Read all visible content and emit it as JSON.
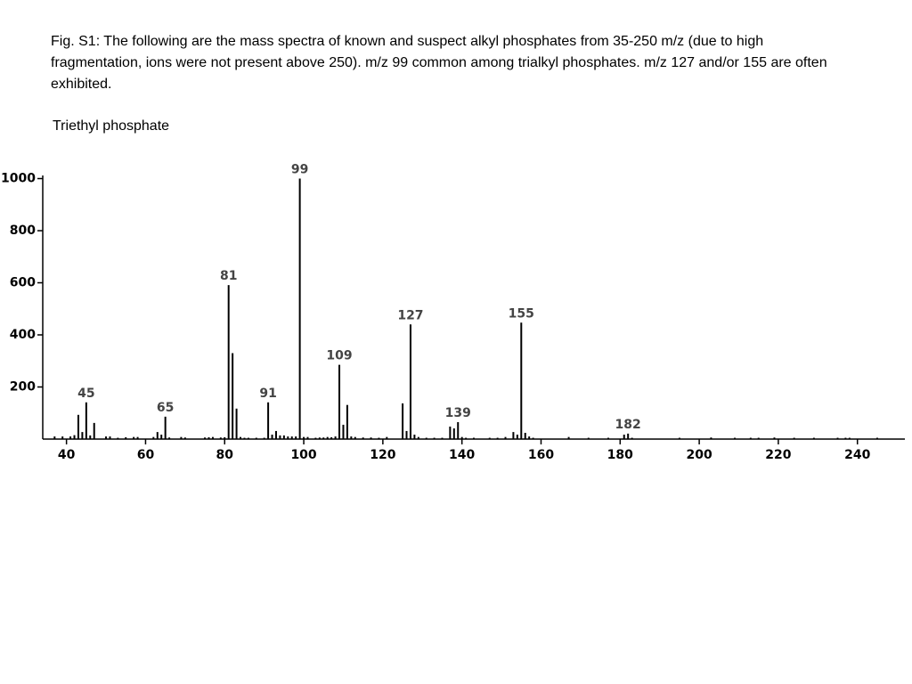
{
  "caption": "Fig. S1: The following are the mass spectra of known and  suspect alkyl phosphates from 35-250 m/z (due to high fragmentation, ions were not present above 250). m/z 99 common among trialkyl phosphates. m/z 127 and/or 155 are often exhibited.",
  "chart_data": {
    "type": "bar",
    "title": "Triethyl phosphate",
    "color": "#000000",
    "x": [
      37,
      39,
      41,
      42,
      43,
      44,
      45,
      46,
      47,
      50,
      51,
      53,
      55,
      57,
      58,
      62,
      63,
      64,
      65,
      66,
      69,
      70,
      75,
      76,
      77,
      79,
      80,
      81,
      82,
      83,
      84,
      85,
      86,
      88,
      90,
      91,
      92,
      93,
      94,
      95,
      96,
      97,
      98,
      99,
      100,
      101,
      103,
      104,
      105,
      106,
      107,
      108,
      109,
      110,
      111,
      112,
      113,
      115,
      117,
      119,
      121,
      125,
      126,
      127,
      128,
      129,
      131,
      133,
      135,
      137,
      138,
      139,
      140,
      141,
      143,
      147,
      149,
      151,
      153,
      154,
      155,
      156,
      157,
      158,
      167,
      172,
      177,
      181,
      182,
      183,
      195,
      203,
      209,
      213,
      215,
      219,
      224,
      229,
      235,
      237,
      238,
      245
    ],
    "values": [
      10,
      10,
      10,
      15,
      93,
      27,
      141,
      14,
      62,
      10,
      10,
      5,
      7,
      8,
      8,
      8,
      27,
      17,
      86,
      6,
      8,
      6,
      6,
      7,
      8,
      6,
      7,
      591,
      330,
      117,
      8,
      5,
      5,
      5,
      5,
      141,
      17,
      31,
      14,
      14,
      10,
      10,
      10,
      1000,
      8,
      8,
      5,
      6,
      6,
      8,
      7,
      10,
      285,
      55,
      131,
      10,
      8,
      6,
      6,
      5,
      8,
      137,
      31,
      440,
      17,
      8,
      5,
      5,
      5,
      48,
      41,
      65,
      8,
      5,
      5,
      5,
      5,
      8,
      27,
      17,
      447,
      24,
      10,
      5,
      8,
      5,
      5,
      17,
      21,
      5,
      5,
      6,
      5,
      5,
      5,
      6,
      5,
      5,
      5,
      5,
      5,
      5
    ],
    "annotations": [
      45,
      65,
      81,
      91,
      99,
      109,
      127,
      139,
      155,
      182
    ],
    "xlim": [
      34,
      252
    ],
    "xticks": [
      40,
      60,
      80,
      100,
      120,
      140,
      160,
      180,
      200,
      220,
      240
    ],
    "ylim": [
      0,
      1012
    ],
    "yticks": [
      200,
      400,
      600,
      800,
      1000
    ]
  }
}
